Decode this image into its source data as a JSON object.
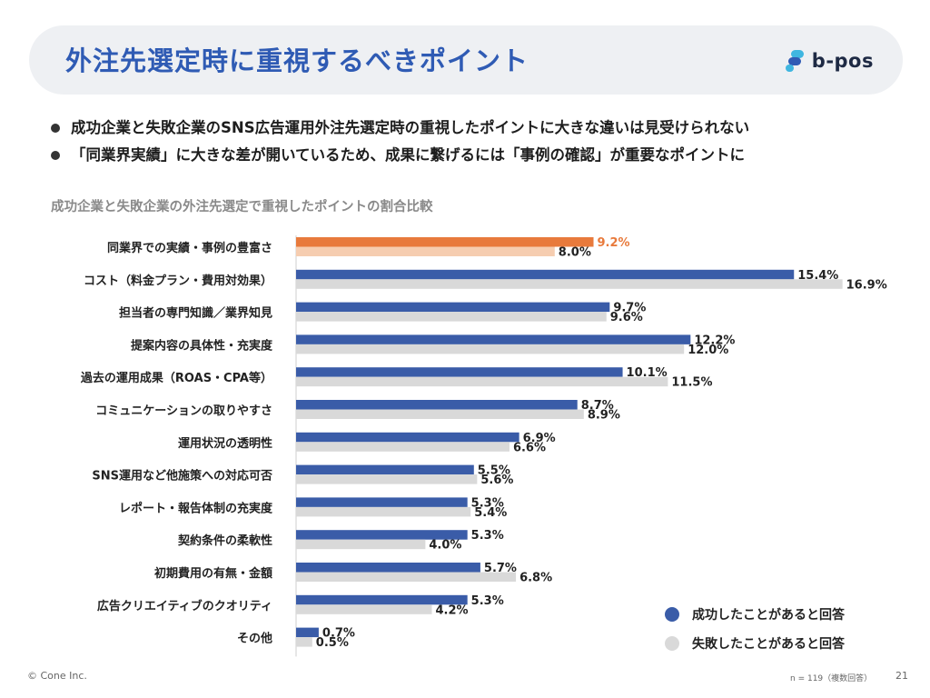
{
  "header": {
    "title": "外注先選定時に重視するべきポイント",
    "logo_text": "b-pos"
  },
  "bullets": [
    "成功企業と失敗企業のSNS広告運用外注先選定時の重視したポイントに大きな違いは見受けられない",
    "「同業界実績」に大きな差が開いているため、成果に繋げるには「事例の確認」が重要なポイントに"
  ],
  "chart_title": "成功企業と失敗企業の外注先選定で重視したポイントの割合比較",
  "chart_data": {
    "type": "bar",
    "orientation": "horizontal",
    "categories": [
      "同業界での実績・事例の豊富さ",
      "コスト（料金プラン・費用対効果）",
      "担当者の専門知識／業界知見",
      "提案内容の具体性・充実度",
      "過去の運用成果（ROAS・CPA等）",
      "コミュニケーションの取りやすさ",
      "運用状況の透明性",
      "SNS運用など他施策への対応可否",
      "レポート・報告体制の充実度",
      "契約条件の柔軟性",
      "初期費用の有無・金額",
      "広告クリエイティブのクオリティ",
      "その他"
    ],
    "series": [
      {
        "name": "成功したことがあると回答",
        "values": [
          9.2,
          15.4,
          9.7,
          12.2,
          10.1,
          8.7,
          6.9,
          5.5,
          5.3,
          5.3,
          5.7,
          5.3,
          0.7
        ]
      },
      {
        "name": "失敗したことがあると回答",
        "values": [
          8.0,
          16.9,
          9.6,
          12.0,
          11.5,
          8.9,
          6.6,
          5.6,
          5.4,
          4.0,
          6.8,
          4.2,
          0.5
        ]
      }
    ],
    "value_format": "{v}%",
    "colors": {
      "success": "#3a5ca8",
      "failure": "#d9d9d9",
      "highlight_success": "#e87a3c",
      "highlight_failure": "#f6cdb0"
    },
    "highlight_index": 0,
    "legend_position": "bottom-right",
    "grid": false
  },
  "legend": [
    {
      "label": "成功したことがあると回答",
      "color": "#3a5ca8"
    },
    {
      "label": "失敗したことがあると回答",
      "color": "#d9d9d9"
    }
  ],
  "footer": {
    "copyright": "© Cone Inc.",
    "note": "n = 119（複数回答）",
    "page": "21"
  }
}
